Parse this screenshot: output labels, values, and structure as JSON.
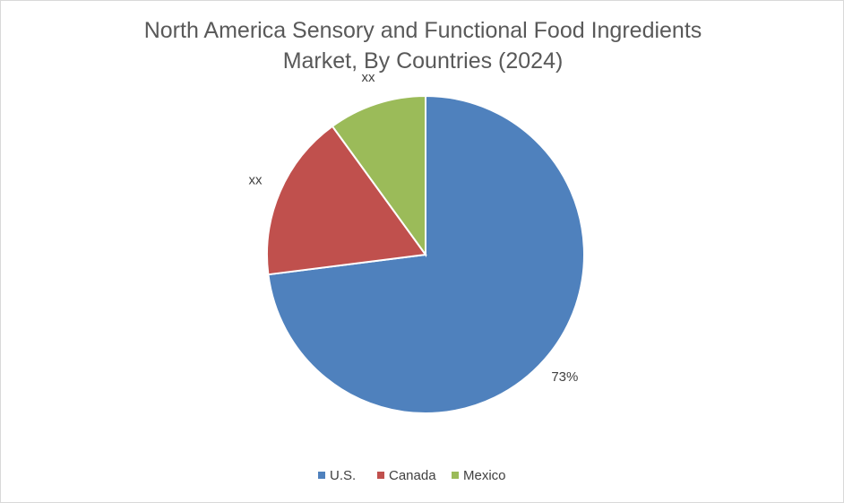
{
  "chart_data": {
    "type": "pie",
    "title": "North America Sensory and Functional Food Ingredients Market, By Countries (2024)",
    "categories": [
      "U.S.",
      "Canada",
      "Mexico"
    ],
    "values": [
      73,
      17,
      10
    ],
    "value_labels": [
      "73%",
      "xx",
      "xx"
    ],
    "colors": [
      "#4f81bd",
      "#c0504d",
      "#9bbb59"
    ],
    "legend": "bottom"
  }
}
